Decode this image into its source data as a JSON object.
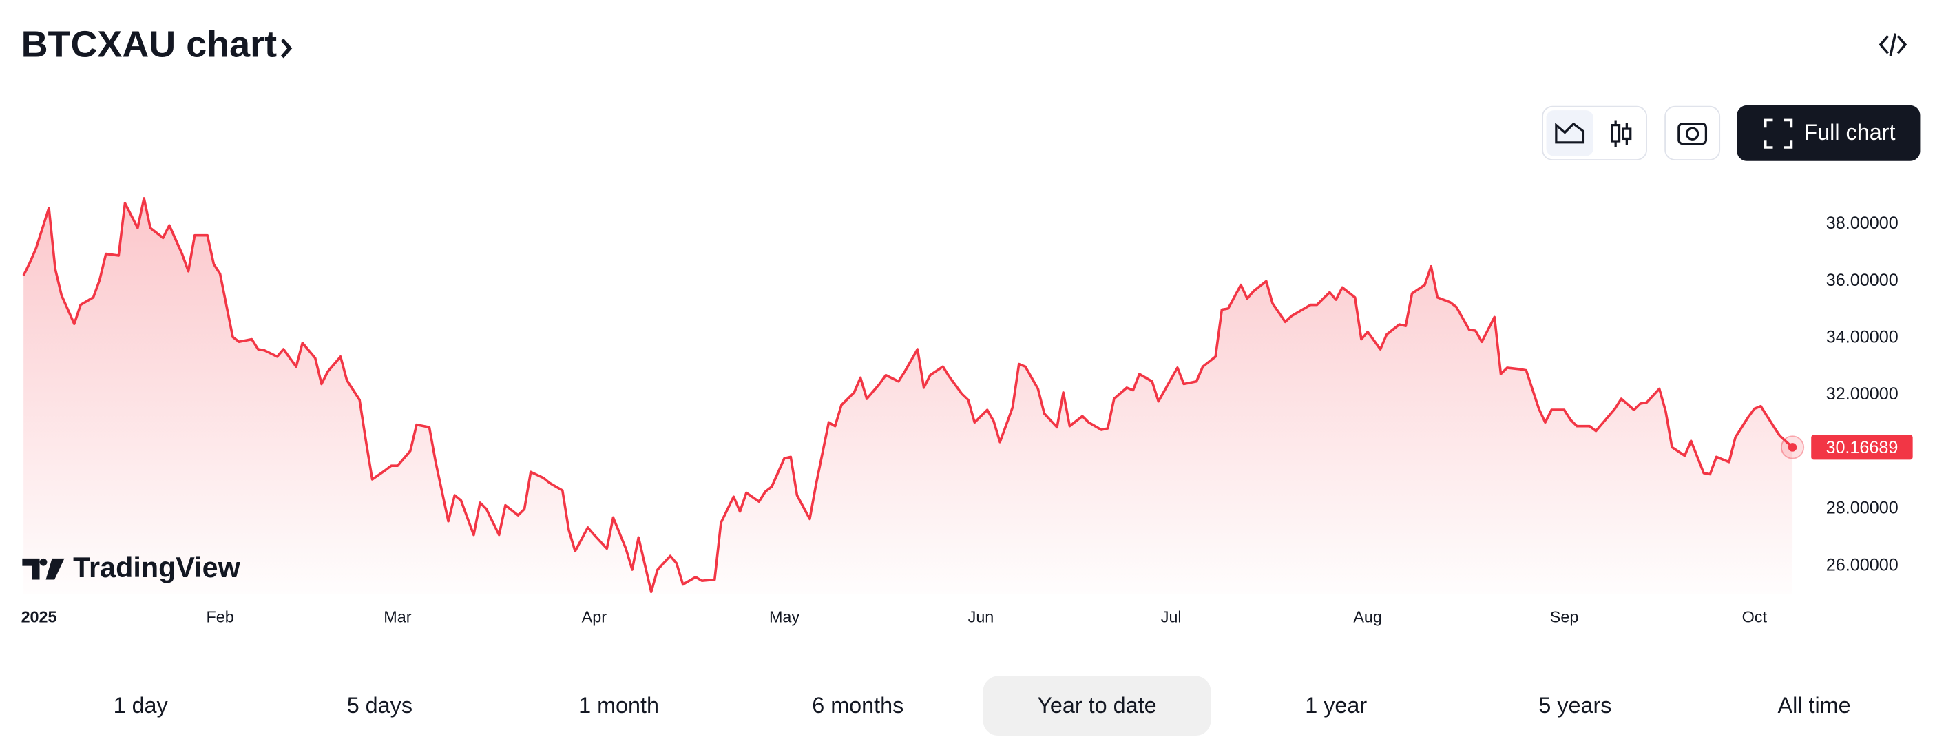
{
  "header": {
    "title": "BTCXAU chart"
  },
  "toolbar": {
    "full_chart": "Full chart"
  },
  "logo": "TradingView",
  "chart_data": {
    "type": "area",
    "color": "#f23645",
    "x": [
      0,
      1,
      2,
      4,
      5,
      6,
      8,
      9,
      11,
      12,
      13,
      15,
      16,
      18,
      19,
      20,
      22,
      23,
      25,
      26,
      27,
      29,
      30,
      31,
      33,
      34,
      36,
      37,
      38,
      40,
      41,
      43,
      44,
      46,
      47,
      48,
      50,
      51,
      53,
      54,
      55,
      57,
      58,
      59,
      61,
      62,
      64,
      65,
      67,
      68,
      69,
      71,
      72,
      73,
      75,
      76,
      78,
      79,
      80,
      82,
      83,
      85,
      86,
      87,
      89,
      90,
      92,
      93,
      95,
      96,
      97,
      99,
      100,
      102,
      103,
      104,
      106,
      107,
      109,
      110,
      112,
      113,
      114,
      116,
      117,
      118,
      120,
      121,
      122,
      124,
      125,
      127,
      128,
      129,
      131,
      132,
      133,
      135,
      136,
      138,
      139,
      141,
      142,
      143,
      145,
      146,
      148,
      149,
      150,
      152,
      153,
      154,
      156,
      157,
      158,
      160,
      161,
      163,
      164,
      165,
      167,
      168,
      170,
      171,
      172,
      174,
      175,
      176,
      178,
      179,
      181,
      182,
      183,
      185,
      186,
      188,
      189,
      190,
      192,
      193,
      194,
      196,
      197,
      199,
      200,
      201,
      203,
      204,
      206,
      207,
      208,
      210,
      211,
      212,
      214,
      215,
      217,
      218,
      219,
      221,
      222,
      223,
      225,
      226,
      228,
      229,
      230,
      232,
      233,
      234,
      236,
      237,
      239,
      240,
      241,
      243,
      244,
      245,
      247,
      248,
      250,
      251,
      252,
      254,
      255,
      256,
      258,
      259,
      260,
      262,
      263,
      265,
      266,
      267,
      269,
      270,
      272,
      273,
      274,
      276,
      277,
      279
    ],
    "values": [
      36.2,
      36.65,
      37.17,
      38.57,
      36.43,
      35.5,
      34.5,
      35.17,
      35.43,
      36.04,
      36.96,
      36.9,
      38.74,
      37.87,
      38.91,
      37.87,
      37.52,
      37.96,
      36.96,
      36.35,
      37.61,
      37.61,
      36.6,
      36.26,
      34.04,
      33.87,
      33.96,
      33.61,
      33.57,
      33.35,
      33.61,
      33.0,
      33.83,
      33.3,
      32.39,
      32.83,
      33.35,
      32.52,
      31.83,
      30.39,
      29.04,
      29.35,
      29.52,
      29.52,
      30.04,
      30.96,
      30.87,
      29.65,
      27.57,
      28.48,
      28.3,
      27.09,
      28.22,
      28.0,
      27.09,
      28.13,
      27.78,
      28.0,
      29.3,
      29.09,
      28.91,
      28.65,
      27.26,
      26.52,
      27.35,
      27.09,
      26.61,
      27.7,
      26.61,
      25.87,
      27.0,
      25.09,
      25.87,
      26.35,
      26.09,
      25.35,
      25.61,
      25.48,
      25.52,
      27.52,
      28.43,
      27.91,
      28.57,
      28.26,
      28.61,
      28.78,
      29.78,
      29.83,
      28.48,
      27.65,
      28.87,
      31.04,
      30.91,
      31.65,
      32.09,
      32.61,
      31.87,
      32.39,
      32.7,
      32.48,
      32.83,
      33.61,
      32.26,
      32.7,
      33.0,
      32.65,
      32.04,
      31.83,
      31.04,
      31.48,
      31.09,
      30.35,
      31.57,
      33.09,
      33.0,
      32.22,
      31.35,
      30.87,
      32.09,
      30.91,
      31.26,
      31.04,
      30.78,
      30.83,
      31.87,
      32.26,
      32.17,
      32.74,
      32.48,
      31.78,
      32.57,
      32.96,
      32.39,
      32.48,
      33.0,
      33.35,
      35.0,
      35.04,
      35.87,
      35.39,
      35.65,
      36.0,
      35.22,
      34.57,
      34.78,
      34.91,
      35.17,
      35.17,
      35.61,
      35.35,
      35.78,
      35.43,
      33.96,
      34.22,
      33.61,
      34.13,
      34.48,
      34.43,
      35.57,
      35.87,
      36.52,
      35.43,
      35.26,
      35.09,
      34.3,
      34.26,
      33.87,
      34.74,
      32.74,
      32.96,
      32.91,
      32.87,
      31.52,
      31.04,
      31.48,
      31.48,
      31.13,
      30.91,
      30.91,
      30.74,
      31.26,
      31.52,
      31.87,
      31.48,
      31.7,
      31.74,
      32.22,
      31.43,
      30.17,
      29.87,
      30.39,
      29.26,
      29.22,
      29.83,
      29.65,
      30.52,
      31.22,
      31.52,
      31.61,
      30.91,
      30.57,
      30.16689
    ],
    "xlim": [
      0,
      280
    ],
    "ylim": [
      25,
      39.35
    ],
    "xticks": [
      {
        "value": 0,
        "label": "2025"
      },
      {
        "value": 31,
        "label": "Feb"
      },
      {
        "value": 59,
        "label": "Mar"
      },
      {
        "value": 90,
        "label": "Apr"
      },
      {
        "value": 120,
        "label": "May"
      },
      {
        "value": 151,
        "label": "Jun"
      },
      {
        "value": 181,
        "label": "Jul"
      },
      {
        "value": 212,
        "label": "Aug"
      },
      {
        "value": 243,
        "label": "Sep"
      },
      {
        "value": 273,
        "label": "Oct"
      }
    ],
    "yticks": [
      {
        "value": 26,
        "label": "26.00000"
      },
      {
        "value": 28,
        "label": "28.00000"
      },
      {
        "value": 32,
        "label": "32.00000"
      },
      {
        "value": 34,
        "label": "34.00000"
      },
      {
        "value": 36,
        "label": "36.00000"
      },
      {
        "value": 38,
        "label": "38.00000"
      }
    ]
  },
  "ranges": [
    {
      "label": "1 day"
    },
    {
      "label": "5 days"
    },
    {
      "label": "1 month"
    },
    {
      "label": "6 months"
    },
    {
      "label": "Year to date",
      "selected": true
    },
    {
      "label": "1 year"
    },
    {
      "label": "5 years"
    },
    {
      "label": "All time"
    }
  ]
}
